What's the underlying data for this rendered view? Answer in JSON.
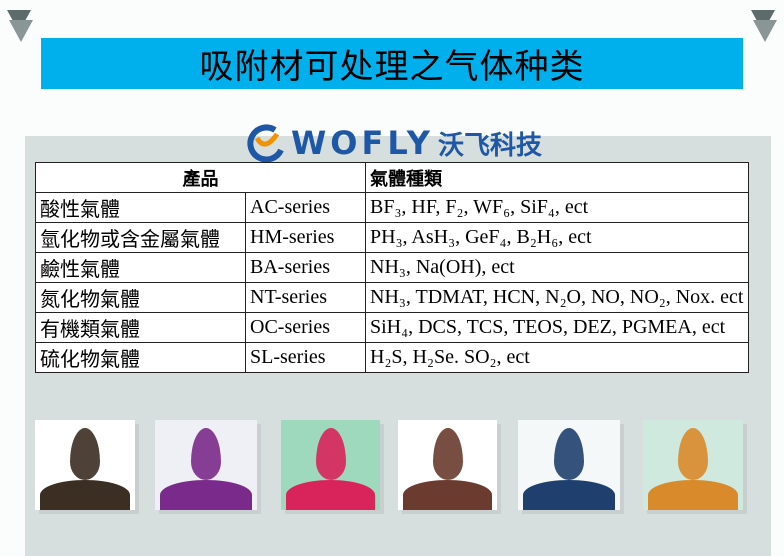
{
  "title": "吸附材可处理之气体种类",
  "logo": {
    "text": "WOFLY",
    "cn": "沃飞科技",
    "colors": {
      "blue": "#1d57a6",
      "orange": "#f39200"
    }
  },
  "table": {
    "headers": [
      "產品",
      "氣體種類"
    ],
    "rows": [
      {
        "name": "酸性氣體",
        "series": "AC-series",
        "gases": "BF₃, HF, F₂, WF₆, SiF₄, ect"
      },
      {
        "name": "氫化物或含金屬氣體",
        "series": "HM-series",
        "gases": "PH₃, AsH₃, GeF₄, B₂H₆, ect"
      },
      {
        "name": "鹼性氣體",
        "series": "BA-series",
        "gases": "NH₃, Na(OH), ect"
      },
      {
        "name": "氮化物氣體",
        "series": "NT-series",
        "gases": "NH₃, TDMAT, HCN, N₂O, NO, NO₂, Nox. ect"
      },
      {
        "name": "有機類氣體",
        "series": "OC-series",
        "gases": "SiH₄, DCS, TCS, TEOS, DEZ, PGMEA, ect"
      },
      {
        "name": "硫化物氣體",
        "series": "SL-series",
        "gases": "H₂S, H₂Se. SO₂, ect"
      }
    ]
  },
  "photos": [
    {
      "bg": "#ffffff",
      "color": "#3b2e22"
    },
    {
      "bg": "#eef0f6",
      "color": "#7a2a8a"
    },
    {
      "bg": "#9fd9bd",
      "color": "#d8245a"
    },
    {
      "bg": "#ffffff",
      "color": "#6a3b2e"
    },
    {
      "bg": "#f4f8f8",
      "color": "#1f3f6e"
    },
    {
      "bg": "#cfe9df",
      "color": "#d98a2a"
    }
  ],
  "colors": {
    "banner": "#00b0ec",
    "panel": "#d7dfde"
  }
}
